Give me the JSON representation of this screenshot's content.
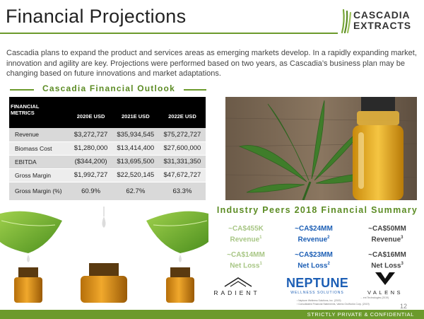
{
  "header": {
    "title": "Financial Projections",
    "logo": {
      "line1": "CASCADIA",
      "line2": "EXTRACTS",
      "icon": "leaf-stripes-icon"
    }
  },
  "intro": "Cascadia plans to expand the product and services areas as emerging markets develop. In a rapidly expanding market, innovation and agility are key. Projections were performed based on two years, as Cascadia’s business plan may be changing based on future innovations and market adaptations.",
  "outlook": {
    "heading": "Cascadia Financial Outlook",
    "table": {
      "metrics_header": [
        "FINANCIAL",
        "METRICS"
      ],
      "columns": [
        "2020E USD",
        "2021E USD",
        "2022E USD"
      ],
      "rows": [
        {
          "label": "Revenue",
          "values": [
            "$3,272,727",
            "$35,934,545",
            "$75,272,727"
          ]
        },
        {
          "label": "Biomass Cost",
          "values": [
            "$1,280,000",
            "$13,414,400",
            "$27,600,000"
          ]
        },
        {
          "label": "EBITDA",
          "values": [
            "($344,200)",
            "$13,695,500",
            "$31,331,350"
          ]
        },
        {
          "label": "Gross Margin",
          "values": [
            "$1,992,727",
            "$22,520,145",
            "$47,672,727"
          ]
        },
        {
          "label": "Gross Margin (%)",
          "values": [
            "60.9%",
            "62.7%",
            "63.3%"
          ]
        }
      ]
    }
  },
  "peers": {
    "heading": "Industry Peers 2018 Financial Summary",
    "companies": [
      {
        "revenue": "~CA$455K",
        "revenue_label": "Revenue",
        "revenue_sup": "1",
        "loss": "~CA$14MM",
        "loss_label": "Net Loss",
        "loss_sup": "1",
        "logo_text": "RADIENT",
        "color": "#a8c685"
      },
      {
        "revenue": "~CA$24MM",
        "revenue_label": "Revenue",
        "revenue_sup": "2",
        "loss": "~CA$23MM",
        "loss_label": "Net Loss",
        "loss_sup": "2",
        "logo_text": "NEPTUNE",
        "logo_sub": "WELLNESS SOLUTIONS",
        "color": "#1d5fb5"
      },
      {
        "revenue": "~CA$50MM",
        "revenue_label": "Revenue",
        "revenue_sup": "3",
        "loss": "~CA$16MM",
        "loss_label": "Net Loss",
        "loss_sup": "3",
        "logo_text": "VALENS",
        "color": "#444444"
      }
    ],
    "footnotes": [
      "... ent Technologies (2019)",
      "² Neptune Wellness Solutions, Inc. (2019)",
      "³ Consolidated Financial Statements, Valens GroWorks Corp. (2019)"
    ]
  },
  "footer": {
    "page_number": "12",
    "confidential": "STRICTLY PRIVATE & CONFIDENTIAL"
  }
}
